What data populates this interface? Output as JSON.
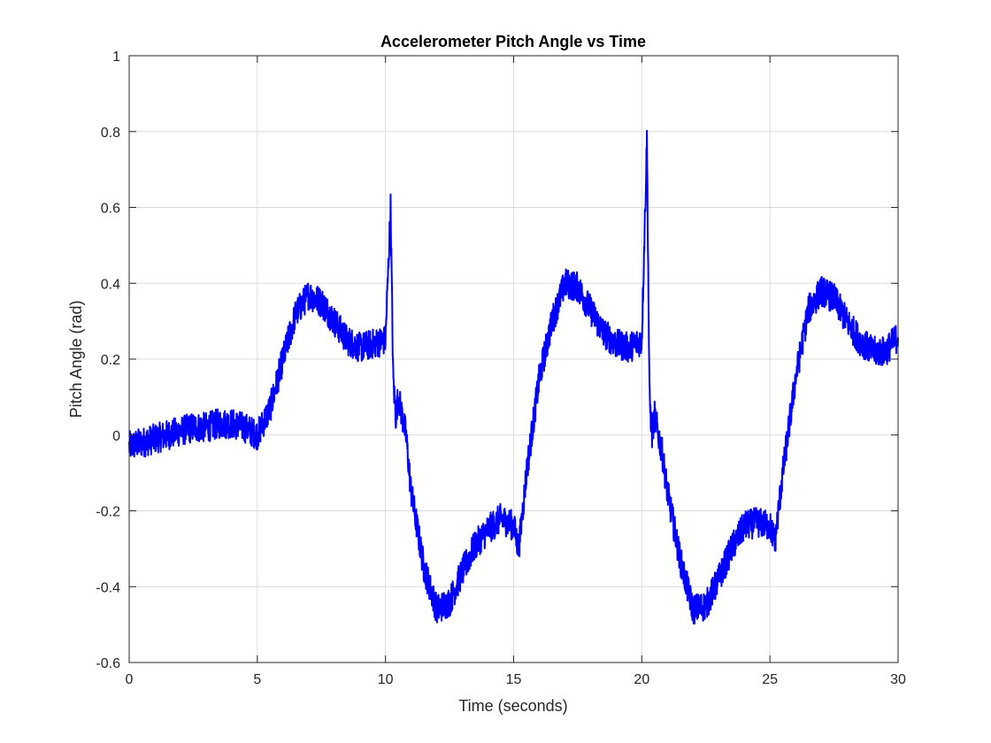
{
  "chart_data": {
    "type": "line",
    "title": "Accelerometer Pitch Angle vs Time",
    "xlabel": "Time (seconds)",
    "ylabel": "Pitch Angle (rad)",
    "xlim": [
      0,
      30
    ],
    "ylim": [
      -0.6,
      1
    ],
    "xticks": [
      "0",
      "5",
      "10",
      "15",
      "20",
      "25",
      "30"
    ],
    "yticks": [
      "-0.6",
      "-0.4",
      "-0.2",
      "0",
      "0.2",
      "0.4",
      "0.6",
      "0.8",
      "1"
    ],
    "grid": true,
    "series": [
      {
        "color": "#0000ff",
        "noise_amplitude": 0.04,
        "x": [
          0,
          0.5,
          1,
          1.5,
          2,
          2.5,
          3,
          3.5,
          4,
          4.5,
          5,
          5.5,
          6,
          6.5,
          7,
          7.5,
          8,
          8.5,
          9,
          9.5,
          10,
          10.2,
          10.3,
          10.4,
          10.5,
          10.8,
          11,
          11.5,
          12,
          12.5,
          13,
          13.5,
          14,
          14.5,
          15,
          15.2,
          15.5,
          16,
          16.5,
          17,
          17.5,
          18,
          18.5,
          19,
          19.5,
          20,
          20.2,
          20.3,
          20.4,
          20.5,
          20.8,
          21,
          21.5,
          22,
          22.5,
          23,
          23.5,
          24,
          24.5,
          25,
          25.2,
          25.5,
          26,
          26.5,
          27,
          27.5,
          28,
          28.5,
          29,
          29.5,
          30
        ],
        "y": [
          -0.03,
          -0.02,
          -0.01,
          0.0,
          0.01,
          0.02,
          0.02,
          0.03,
          0.03,
          0.02,
          0.0,
          0.07,
          0.2,
          0.32,
          0.37,
          0.35,
          0.3,
          0.25,
          0.23,
          0.24,
          0.25,
          0.6,
          0.15,
          0.05,
          0.1,
          0.0,
          -0.15,
          -0.35,
          -0.46,
          -0.44,
          -0.36,
          -0.29,
          -0.25,
          -0.22,
          -0.24,
          -0.3,
          -0.1,
          0.15,
          0.3,
          0.4,
          0.39,
          0.33,
          0.27,
          0.24,
          0.23,
          0.25,
          0.78,
          0.1,
          0.0,
          0.05,
          -0.05,
          -0.15,
          -0.33,
          -0.46,
          -0.45,
          -0.38,
          -0.3,
          -0.24,
          -0.23,
          -0.24,
          -0.28,
          -0.1,
          0.15,
          0.33,
          0.38,
          0.36,
          0.3,
          0.25,
          0.22,
          0.22,
          0.26
        ]
      }
    ]
  }
}
